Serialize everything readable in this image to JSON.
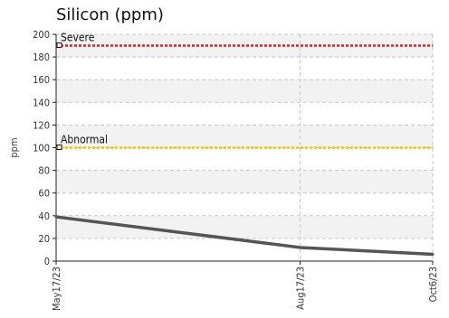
{
  "chart_data": {
    "type": "line",
    "title": "Silicon (ppm)",
    "ylabel": "ppm",
    "xlabel": "",
    "ylim": [
      0,
      200
    ],
    "yticks": [
      0,
      20,
      40,
      60,
      80,
      100,
      120,
      140,
      160,
      180,
      200
    ],
    "x": [
      "May17/23",
      "Aug17/23",
      "Oct6/23"
    ],
    "x_days": [
      0,
      92,
      142
    ],
    "series": [
      {
        "name": "",
        "values": [
          39,
          12,
          6
        ],
        "color": "#555555"
      }
    ],
    "thresholds": [
      {
        "label": "Severe",
        "value": 190,
        "color": "#e02020"
      },
      {
        "label": "Abnormal",
        "value": 100,
        "color": "#f5c400"
      }
    ],
    "grid": true,
    "legend": "none",
    "band_color": "#f2f2f2"
  }
}
